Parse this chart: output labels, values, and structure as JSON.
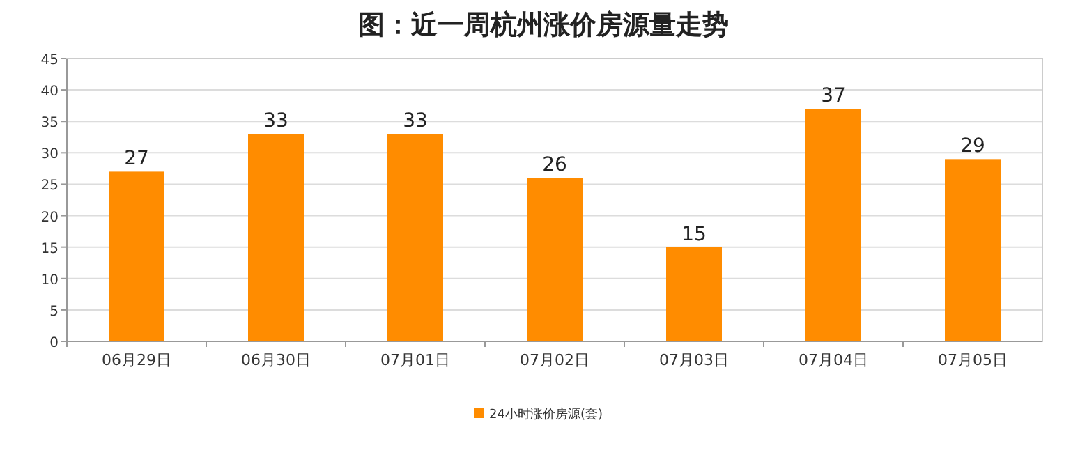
{
  "chart_data": {
    "type": "bar",
    "title": "图：近一周杭州涨价房源量走势",
    "categories": [
      "06月29日",
      "06月30日",
      "07月01日",
      "07月02日",
      "07月03日",
      "07月04日",
      "07月05日"
    ],
    "series": [
      {
        "name": "24小时涨价房源(套)",
        "color": "#ff8c00",
        "values": [
          27,
          33,
          33,
          26,
          15,
          37,
          29
        ]
      }
    ],
    "ylim": [
      0,
      45
    ],
    "yticks": [
      0,
      5,
      10,
      15,
      20,
      25,
      30,
      35,
      40,
      45
    ],
    "grid": "y",
    "legend": "bottom",
    "data_labels": true
  }
}
